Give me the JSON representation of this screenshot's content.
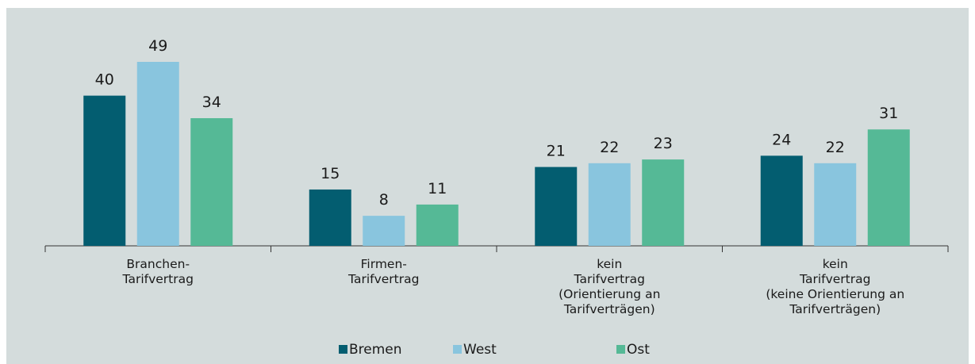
{
  "chart_data": {
    "type": "bar",
    "categories": [
      [
        "Branchen-",
        "Tarifvertrag"
      ],
      [
        "Firmen-",
        "Tarifvertrag"
      ],
      [
        "kein",
        "Tarifvertrag",
        "(Orientierung an",
        "Tarifverträgen)"
      ],
      [
        "kein",
        "Tarifvertrag",
        "(keine Orientierung an",
        "Tarifverträgen)"
      ]
    ],
    "series": [
      {
        "name": "Bremen",
        "color": "#035d70",
        "values": [
          40,
          15,
          21,
          24
        ]
      },
      {
        "name": "West",
        "color": "#89c5de",
        "values": [
          49,
          8,
          22,
          22
        ]
      },
      {
        "name": "Ost",
        "color": "#55b996",
        "values": [
          34,
          11,
          23,
          31
        ]
      }
    ],
    "legend": "bottom"
  }
}
